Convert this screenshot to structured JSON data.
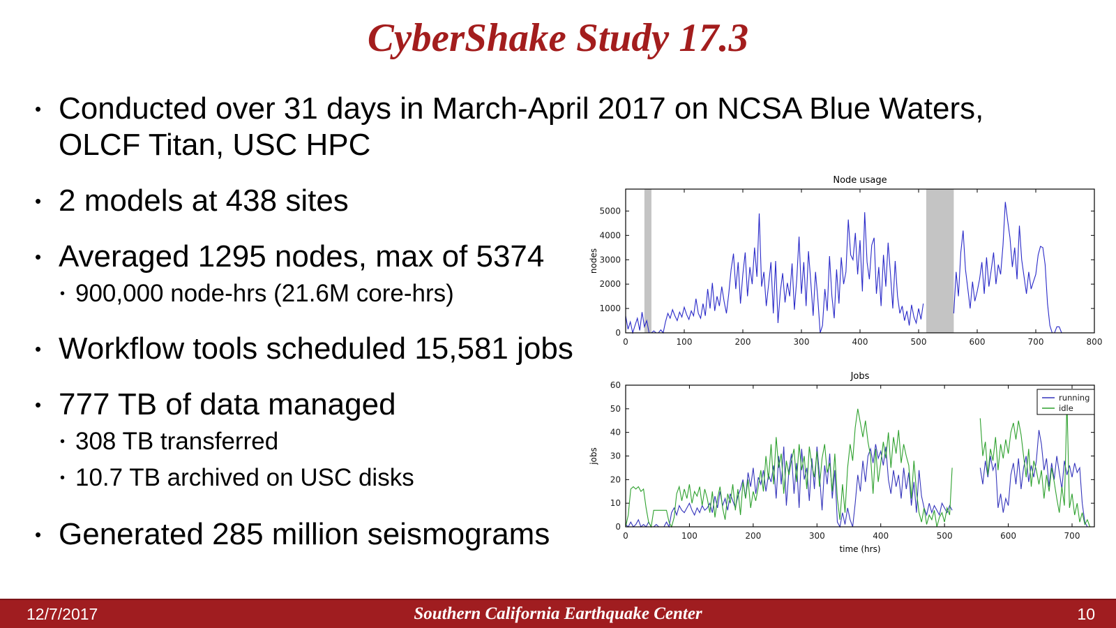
{
  "slide": {
    "title": "CyberShake Study 17.3",
    "title_color": "#a31d1d",
    "accent_color": "#a01d20",
    "text_color": "#000000"
  },
  "bullets": [
    {
      "level": 1,
      "lines": [
        "Conducted over 31 days in March-April 2017 on NCSA Blue Waters,",
        "OLCF Titan, USC HPC"
      ]
    },
    {
      "level": 1,
      "lines": [
        "2 models at 438 sites"
      ]
    },
    {
      "level": 1,
      "lines": [
        "Averaged 1295 nodes, max of 5374"
      ]
    },
    {
      "level": 2,
      "lines": [
        "900,000 node-hrs (21.6M core-hrs)"
      ]
    },
    {
      "level": 1,
      "lines": [
        "Workflow tools scheduled 15,581 jobs"
      ]
    },
    {
      "level": 1,
      "lines": [
        "777 TB of data managed"
      ]
    },
    {
      "level": 2,
      "lines": [
        "308 TB transferred"
      ]
    },
    {
      "level": 2,
      "lines": [
        "10.7 TB archived on USC disks"
      ]
    },
    {
      "level": 1,
      "lines": [
        "Generated 285 million seismograms"
      ]
    }
  ],
  "footer": {
    "date": "12/7/2017",
    "center": "Southern California Earthquake Center",
    "page": "10"
  },
  "chart_data": [
    {
      "type": "line",
      "title": "Node usage",
      "xlabel": "",
      "ylabel": "nodes",
      "xlim": [
        0,
        800
      ],
      "ylim": [
        0,
        5900
      ],
      "xticks": [
        0,
        100,
        200,
        300,
        400,
        500,
        600,
        700,
        800
      ],
      "yticks": [
        0,
        1000,
        2000,
        3000,
        4000,
        5000
      ],
      "grid": false,
      "band_color": "#c4c4c4",
      "bands": [
        {
          "x0": 32,
          "x1": 44
        },
        {
          "x0": 513,
          "x1": 560
        }
      ],
      "series": [
        {
          "name": "nodes",
          "color": "#2828c8",
          "x_start": 0,
          "x_step": 4,
          "values": [
            700,
            150,
            450,
            0,
            300,
            600,
            100,
            850,
            250,
            500,
            0,
            0,
            80,
            0,
            0,
            120,
            0,
            450,
            800,
            600,
            950,
            700,
            500,
            850,
            650,
            1050,
            750,
            550,
            900,
            700,
            1400,
            800,
            600,
            1200,
            700,
            1800,
            1000,
            2050,
            900,
            1500,
            1100,
            1900,
            1300,
            800,
            1600,
            2600,
            3250,
            1800,
            2900,
            1200,
            2400,
            3300,
            1500,
            2700,
            2000,
            3500,
            2300,
            4900,
            1900,
            2500,
            1100,
            2000,
            2900,
            800,
            2950,
            400,
            1700,
            2450,
            1250,
            2050,
            1500,
            2850,
            950,
            2200,
            3950,
            1600,
            2900,
            1100,
            3350,
            2100,
            700,
            2500,
            1400,
            0,
            300,
            1800,
            900,
            3150,
            1500,
            600,
            2600,
            1200,
            3100,
            2000,
            2500,
            4650,
            3200,
            3000,
            4100,
            2400,
            3800,
            1700,
            4950,
            2900,
            2200,
            3600,
            3900,
            1600,
            2700,
            1100,
            3200,
            1900,
            3700,
            2400,
            1000,
            2950,
            1500,
            800,
            1100,
            500,
            900,
            300,
            1150,
            650,
            400,
            1000,
            550,
            1200,
            null,
            null,
            null,
            null,
            null,
            null,
            null,
            null,
            null,
            null,
            null,
            null,
            800,
            2500,
            1500,
            3300,
            4200,
            2600,
            1800,
            1000,
            2100,
            1300,
            1700,
            2200,
            2900,
            1600,
            3100,
            1900,
            2600,
            3300,
            2000,
            2800,
            2400,
            3600,
            5374,
            4600,
            3900,
            2700,
            3500,
            2200,
            4400,
            3000,
            2300,
            1600,
            2500,
            1800,
            2100,
            2400,
            3200,
            3550,
            3500,
            2800,
            1200,
            300,
            0,
            0,
            250,
            250,
            0
          ]
        }
      ]
    },
    {
      "type": "line",
      "title": "Jobs",
      "xlabel": "time (hrs)",
      "ylabel": "jobs",
      "xlim": [
        0,
        735
      ],
      "ylim": [
        0,
        60
      ],
      "xticks": [
        0,
        100,
        200,
        300,
        400,
        500,
        600,
        700
      ],
      "yticks": [
        0,
        10,
        20,
        30,
        40,
        50,
        60
      ],
      "grid": false,
      "legend": {
        "position": "top-right",
        "entries": [
          "running",
          "idle"
        ]
      },
      "series": [
        {
          "name": "running",
          "color": "#3434bb",
          "x_start": 0,
          "x_step": 4,
          "values": [
            1,
            0,
            2,
            0,
            1,
            3,
            0,
            1,
            0,
            2,
            0,
            0,
            1,
            0,
            0,
            0,
            2,
            0,
            6,
            8,
            5,
            9,
            7,
            6,
            8,
            10,
            7,
            5,
            8,
            6,
            9,
            7,
            8,
            10,
            6,
            13,
            8,
            15,
            9,
            12,
            7,
            14,
            11,
            8,
            13,
            16,
            20,
            12,
            23,
            17,
            25,
            14,
            21,
            18,
            24,
            15,
            22,
            19,
            26,
            12,
            30,
            18,
            34,
            9,
            24,
            31,
            14,
            27,
            8,
            33,
            20,
            25,
            11,
            29,
            16,
            34,
            22,
            7,
            26,
            18,
            31,
            12,
            24,
            2,
            0,
            6,
            1,
            8,
            3,
            0,
            10,
            22,
            15,
            28,
            19,
            30,
            33,
            27,
            35,
            29,
            32,
            26,
            34,
            20,
            14,
            24,
            17,
            22,
            12,
            25,
            16,
            23,
            9,
            19,
            6,
            24,
            13,
            8,
            5,
            10,
            6,
            9,
            7,
            5,
            10,
            8,
            6,
            9,
            7,
            null,
            null,
            null,
            null,
            null,
            null,
            null,
            null,
            null,
            null,
            25,
            18,
            28,
            21,
            30,
            24,
            27,
            8,
            14,
            6,
            12,
            9,
            22,
            27,
            18,
            29,
            16,
            25,
            30,
            19,
            26,
            21,
            28,
            41,
            35,
            24,
            29,
            17,
            27,
            20,
            30,
            23,
            16,
            28,
            22,
            26,
            21,
            27,
            23,
            25,
            10,
            2,
            0,
            0
          ]
        },
        {
          "name": "idle",
          "color": "#2da02d",
          "x_start": 0,
          "x_step": 4,
          "values": [
            0,
            5,
            16,
            17,
            16,
            17,
            15,
            16,
            8,
            2,
            0,
            7,
            7,
            7,
            7,
            7,
            7,
            2,
            0,
            4,
            14,
            17,
            11,
            16,
            12,
            18,
            10,
            15,
            13,
            17,
            9,
            16,
            12,
            6,
            15,
            4,
            12,
            17,
            8,
            3,
            14,
            10,
            18,
            7,
            16,
            5,
            19,
            12,
            20,
            8,
            15,
            11,
            17,
            24,
            15,
            30,
            20,
            35,
            18,
            38,
            25,
            31,
            14,
            28,
            22,
            28,
            33,
            19,
            35,
            24,
            30,
            16,
            34,
            26,
            21,
            32,
            17,
            29,
            35,
            23,
            27,
            15,
            31,
            12,
            3,
            18,
            6,
            25,
            35,
            28,
            42,
            50,
            44,
            38,
            45,
            36,
            30,
            14,
            33,
            19,
            27,
            36,
            29,
            40,
            25,
            38,
            31,
            41,
            27,
            35,
            30,
            26,
            12,
            28,
            15,
            6,
            2,
            8,
            1,
            5,
            3,
            7,
            0,
            4,
            6,
            2,
            8,
            5,
            25,
            null,
            null,
            null,
            null,
            null,
            null,
            null,
            null,
            null,
            null,
            46,
            30,
            36,
            22,
            33,
            28,
            38,
            24,
            35,
            29,
            37,
            31,
            40,
            44,
            37,
            45,
            39,
            30,
            21,
            33,
            17,
            28,
            24,
            18,
            24,
            12,
            22,
            15,
            25,
            19,
            12,
            6,
            17,
            9,
            53,
            8,
            14,
            5,
            10,
            2,
            6,
            1,
            3,
            0
          ]
        }
      ]
    }
  ]
}
